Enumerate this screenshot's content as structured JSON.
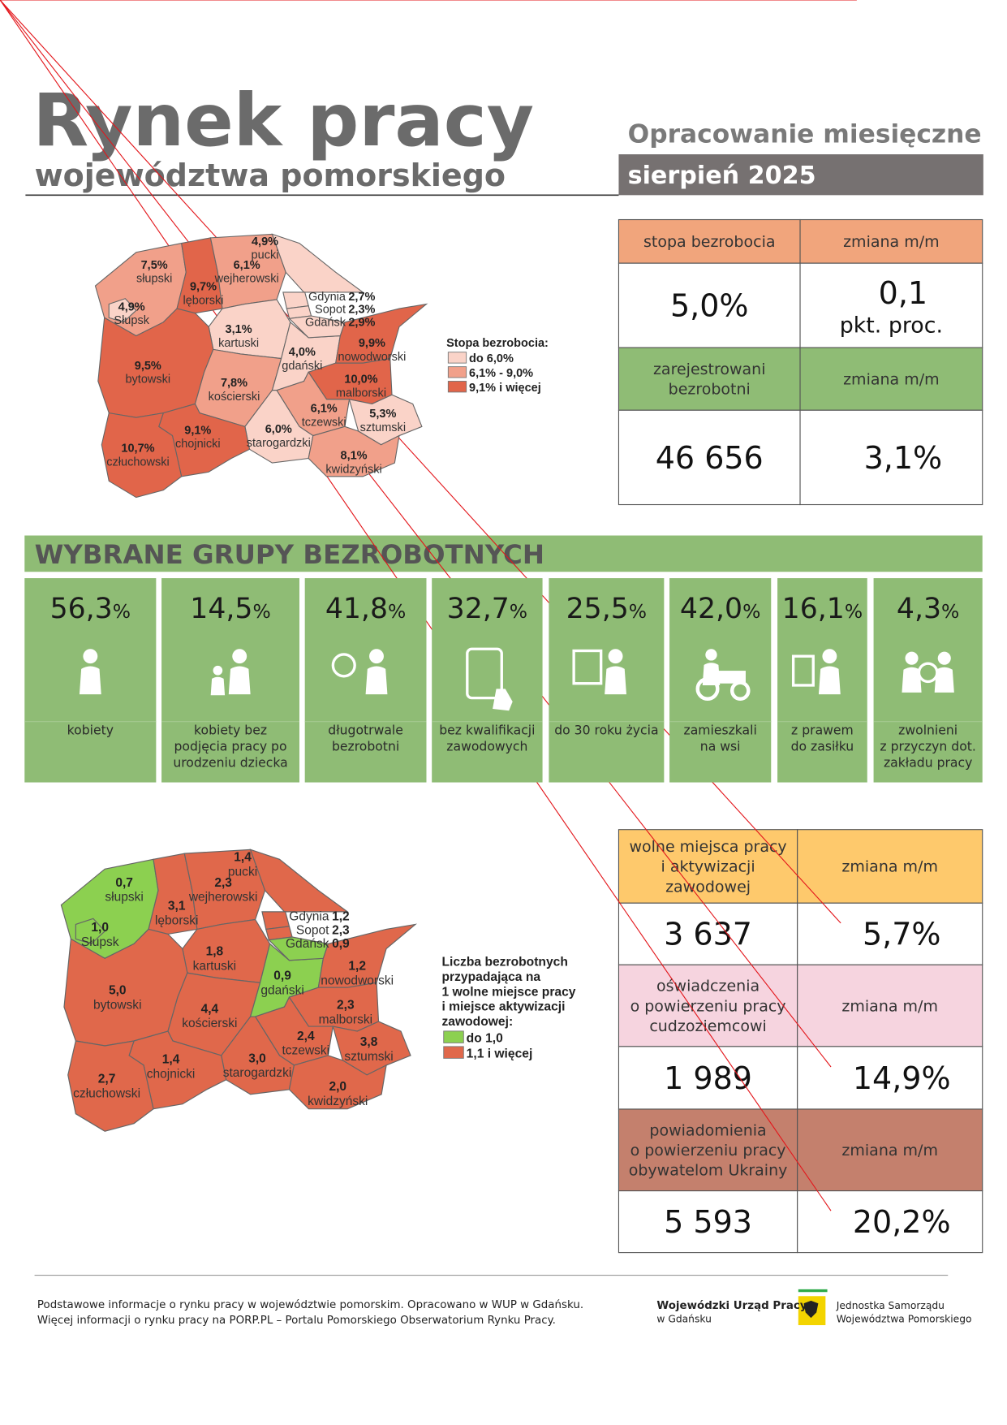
{
  "header": {
    "title": "Rynek pracy",
    "subtitle": "województwa pomorskiego",
    "report_type": "Opracowanie miesięczne",
    "period": "sierpień 2025"
  },
  "unemployment_map": {
    "legend_title": "Stopa bezrobocia:",
    "legend": [
      {
        "label": "do 6,0%",
        "color": "#fad3c8"
      },
      {
        "label": "6,1% - 9,0%",
        "color": "#f1a08a"
      },
      {
        "label": "9,1% i więcej",
        "color": "#e1654a"
      }
    ],
    "regions": [
      {
        "name": "słupski",
        "value": "7,5%",
        "color": "#f1a08a"
      },
      {
        "name": "Słupsk",
        "value": "4,9%",
        "color": "#fad3c8"
      },
      {
        "name": "lęborski",
        "value": "9,7%",
        "color": "#e1654a"
      },
      {
        "name": "wejherowski",
        "value": "6,1%",
        "color": "#f1a08a"
      },
      {
        "name": "pucki",
        "value": "4,9%",
        "color": "#fad3c8"
      },
      {
        "name": "kartuski",
        "value": "3,1%",
        "color": "#fad3c8"
      },
      {
        "name": "bytowski",
        "value": "9,5%",
        "color": "#e1654a"
      },
      {
        "name": "kościerski",
        "value": "7,8%",
        "color": "#f1a08a"
      },
      {
        "name": "gdański",
        "value": "4,0%",
        "color": "#fad3c8"
      },
      {
        "name": "nowodworski",
        "value": "9,9%",
        "color": "#e1654a"
      },
      {
        "name": "malborski",
        "value": "10,0%",
        "color": "#e1654a"
      },
      {
        "name": "tczewski",
        "value": "6,1%",
        "color": "#f1a08a"
      },
      {
        "name": "sztumski",
        "value": "5,3%",
        "color": "#fad3c8"
      },
      {
        "name": "starogardzki",
        "value": "6,0%",
        "color": "#fad3c8"
      },
      {
        "name": "kwidzyński",
        "value": "8,1%",
        "color": "#f1a08a"
      },
      {
        "name": "chojnicki",
        "value": "9,1%",
        "color": "#e1654a"
      },
      {
        "name": "człuchowski",
        "value": "10,7%",
        "color": "#e1654a"
      }
    ],
    "cities": [
      {
        "name": "Gdynia",
        "value": "2,7%",
        "color": "#fad3c8"
      },
      {
        "name": "Sopot",
        "value": "2,3%",
        "color": "#fad3c8"
      },
      {
        "name": "Gdańsk",
        "value": "2,9%",
        "color": "#fad3c8"
      }
    ]
  },
  "summary_table": {
    "rows": [
      {
        "label": [
          "stopa bezrobocia"
        ],
        "change_label": "zmiana m/m",
        "value": "5,0%",
        "change": "0,1",
        "change_unit": "pkt. proc.",
        "color": "#f1a57c"
      },
      {
        "label": [
          "zarejestrowani",
          "bezrobotni"
        ],
        "change_label": "zmiana m/m",
        "value": "46 656",
        "change": "3,1%",
        "color": "#8fbc75"
      }
    ]
  },
  "groups": {
    "title": "WYBRANE GRUPY BEZROBOTNYCH",
    "items": [
      {
        "value": "56,3",
        "unit": "%",
        "label": [
          "kobiety"
        ]
      },
      {
        "value": "14,5",
        "unit": "%",
        "label": [
          "kobiety bez",
          "podjęcia pracy po",
          "urodzeniu dziecka"
        ]
      },
      {
        "value": "41,8",
        "unit": "%",
        "label": [
          "długotrwale",
          "bezrobotni"
        ]
      },
      {
        "value": "32,7",
        "unit": "%",
        "label": [
          "bez kwalifikacji",
          "zawodowych"
        ]
      },
      {
        "value": "25,5",
        "unit": "%",
        "label": [
          "do 30 roku życia"
        ]
      },
      {
        "value": "42,0",
        "unit": "%",
        "label": [
          "zamieszkali",
          "na wsi"
        ]
      },
      {
        "value": "16,1",
        "unit": "%",
        "label": [
          "z prawem",
          "do zasiłku"
        ]
      },
      {
        "value": "4,3",
        "unit": "%",
        "label": [
          "zwolnieni",
          "z przyczyn dot.",
          "zakładu pracy"
        ]
      }
    ]
  },
  "ratio_map": {
    "legend_title": [
      "Liczba bezrobotnych",
      "przypadająca na",
      "1 wolne miejsce pracy",
      "i miejsce aktywizacji",
      "zawodowej:"
    ],
    "legend": [
      {
        "label": "do 1,0",
        "color": "#8cd050"
      },
      {
        "label": "1,1 i więcej",
        "color": "#e0684b"
      }
    ],
    "regions": [
      {
        "name": "słupski",
        "value": "0,7",
        "color": "#8cd050"
      },
      {
        "name": "Słupsk",
        "value": "1,0",
        "color": "#8cd050"
      },
      {
        "name": "lęborski",
        "value": "3,1",
        "color": "#e0684b"
      },
      {
        "name": "wejherowski",
        "value": "2,3",
        "color": "#e0684b"
      },
      {
        "name": "pucki",
        "value": "1,4",
        "color": "#e0684b"
      },
      {
        "name": "kartuski",
        "value": "1,8",
        "color": "#e0684b"
      },
      {
        "name": "bytowski",
        "value": "5,0",
        "color": "#e0684b"
      },
      {
        "name": "kościerski",
        "value": "4,4",
        "color": "#e0684b"
      },
      {
        "name": "gdański",
        "value": "0,9",
        "color": "#8cd050"
      },
      {
        "name": "nowodworski",
        "value": "1,2",
        "color": "#e0684b"
      },
      {
        "name": "malborski",
        "value": "2,3",
        "color": "#e0684b"
      },
      {
        "name": "tczewski",
        "value": "2,4",
        "color": "#e0684b"
      },
      {
        "name": "sztumski",
        "value": "3,8",
        "color": "#e0684b"
      },
      {
        "name": "starogardzki",
        "value": "3,0",
        "color": "#e0684b"
      },
      {
        "name": "kwidzyński",
        "value": "2,0",
        "color": "#e0684b"
      },
      {
        "name": "chojnicki",
        "value": "1,4",
        "color": "#e0684b"
      },
      {
        "name": "człuchowski",
        "value": "2,7",
        "color": "#e0684b"
      }
    ],
    "cities": [
      {
        "name": "Gdynia",
        "value": "1,2",
        "color": "#e0684b"
      },
      {
        "name": "Sopot",
        "value": "2,3",
        "color": "#e0684b"
      },
      {
        "name": "Gdańsk",
        "value": "0,9",
        "color": "#8cd050"
      }
    ]
  },
  "offers_table": {
    "rows": [
      {
        "label": [
          "wolne miejsca pracy",
          "i aktywizacji",
          "zawodowej"
        ],
        "change_label": "zmiana m/m",
        "value": "3 637",
        "change": "5,7%",
        "color": "#fec96c"
      },
      {
        "label": [
          "oświadczenia",
          "o powierzeniu pracy",
          "cudzoziemcowi"
        ],
        "change_label": "zmiana m/m",
        "value": "1 989",
        "change": "14,9%",
        "color": "#f6d4df"
      },
      {
        "label": [
          "powiadomienia",
          "o powierzeniu pracy",
          "obywatelom Ukrainy"
        ],
        "change_label": "zmiana m/m",
        "value": "5 593",
        "change": "20,2%",
        "color": "#c4806d"
      }
    ]
  },
  "footer": {
    "lines": [
      "Podstawowe informacje o rynku pracy w województwie pomorskim. Opracowano w WUP w Gdańsku.",
      "Więcej informacji  o rynku pracy na PORP.PL – Portalu Pomorskiego Obserwatorium Rynku Pracy."
    ],
    "logo_left": [
      "Wojewódzki Urząd Pracy",
      "w Gdańsku"
    ],
    "logo_right": [
      "Jednostka Samorządu",
      "Województwa Pomorskiego"
    ]
  }
}
